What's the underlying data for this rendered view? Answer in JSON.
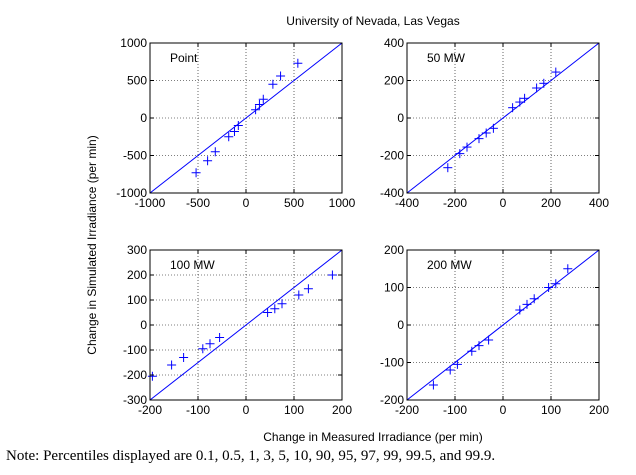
{
  "title": "University of Nevada, Las Vegas",
  "ylabel": "Change in Simulated Irradiance (per min)",
  "xlabel": "Change in Measured Irradiance (per min)",
  "note": "Note: Percentiles displayed are 0.1, 0.5, 1, 3, 5, 10, 90, 95, 97, 99, 99.5, and 99.9.",
  "colors": {
    "series": "#0000ff",
    "axis": "#000000",
    "grid": "#000000"
  },
  "chart_data": [
    {
      "type": "scatter",
      "panel_label": "Point",
      "xlim": [
        -1000,
        1000
      ],
      "ylim": [
        -1000,
        1000
      ],
      "xticks": [
        -1000,
        -500,
        0,
        500,
        1000
      ],
      "yticks": [
        -1000,
        -500,
        0,
        500,
        1000
      ],
      "grid": true,
      "marker": "plus",
      "reference_line": [
        [
          -1000,
          -1000
        ],
        [
          1000,
          1000
        ]
      ],
      "x": [
        -520,
        -400,
        -320,
        -180,
        -120,
        -80,
        100,
        140,
        180,
        280,
        360,
        540
      ],
      "y": [
        -730,
        -570,
        -450,
        -250,
        -180,
        -100,
        110,
        180,
        250,
        450,
        560,
        730
      ]
    },
    {
      "type": "scatter",
      "panel_label": "50 MW",
      "xlim": [
        -400,
        400
      ],
      "ylim": [
        -400,
        400
      ],
      "xticks": [
        -400,
        -200,
        0,
        200,
        400
      ],
      "yticks": [
        -400,
        -200,
        0,
        200,
        400
      ],
      "grid": true,
      "marker": "plus",
      "reference_line": [
        [
          -400,
          -400
        ],
        [
          400,
          400
        ]
      ],
      "x": [
        -230,
        -180,
        -150,
        -100,
        -70,
        -40,
        40,
        70,
        90,
        140,
        170,
        220
      ],
      "y": [
        -265,
        -190,
        -155,
        -110,
        -80,
        -55,
        55,
        85,
        105,
        160,
        185,
        245
      ]
    },
    {
      "type": "scatter",
      "panel_label": "100 MW",
      "xlim": [
        -200,
        200
      ],
      "ylim": [
        -300,
        300
      ],
      "xticks": [
        -200,
        -100,
        0,
        100,
        200
      ],
      "yticks": [
        -300,
        -200,
        -100,
        0,
        100,
        200,
        300
      ],
      "grid": true,
      "marker": "plus",
      "reference_line": [
        [
          -200,
          -300
        ],
        [
          200,
          300
        ]
      ],
      "x": [
        -195,
        -155,
        -130,
        -90,
        -75,
        -55,
        45,
        60,
        75,
        110,
        130,
        180
      ],
      "y": [
        -205,
        -160,
        -130,
        -95,
        -75,
        -50,
        50,
        65,
        85,
        120,
        145,
        200
      ]
    },
    {
      "type": "scatter",
      "panel_label": "200 MW",
      "xlim": [
        -200,
        200
      ],
      "ylim": [
        -200,
        200
      ],
      "xticks": [
        -200,
        -100,
        0,
        100,
        200
      ],
      "yticks": [
        -200,
        -100,
        0,
        100,
        200
      ],
      "grid": true,
      "marker": "plus",
      "reference_line": [
        [
          -200,
          -200
        ],
        [
          200,
          200
        ]
      ],
      "x": [
        -145,
        -110,
        -95,
        -65,
        -50,
        -30,
        35,
        50,
        65,
        95,
        110,
        135
      ],
      "y": [
        -160,
        -120,
        -105,
        -70,
        -55,
        -40,
        40,
        55,
        70,
        100,
        110,
        150
      ]
    }
  ]
}
